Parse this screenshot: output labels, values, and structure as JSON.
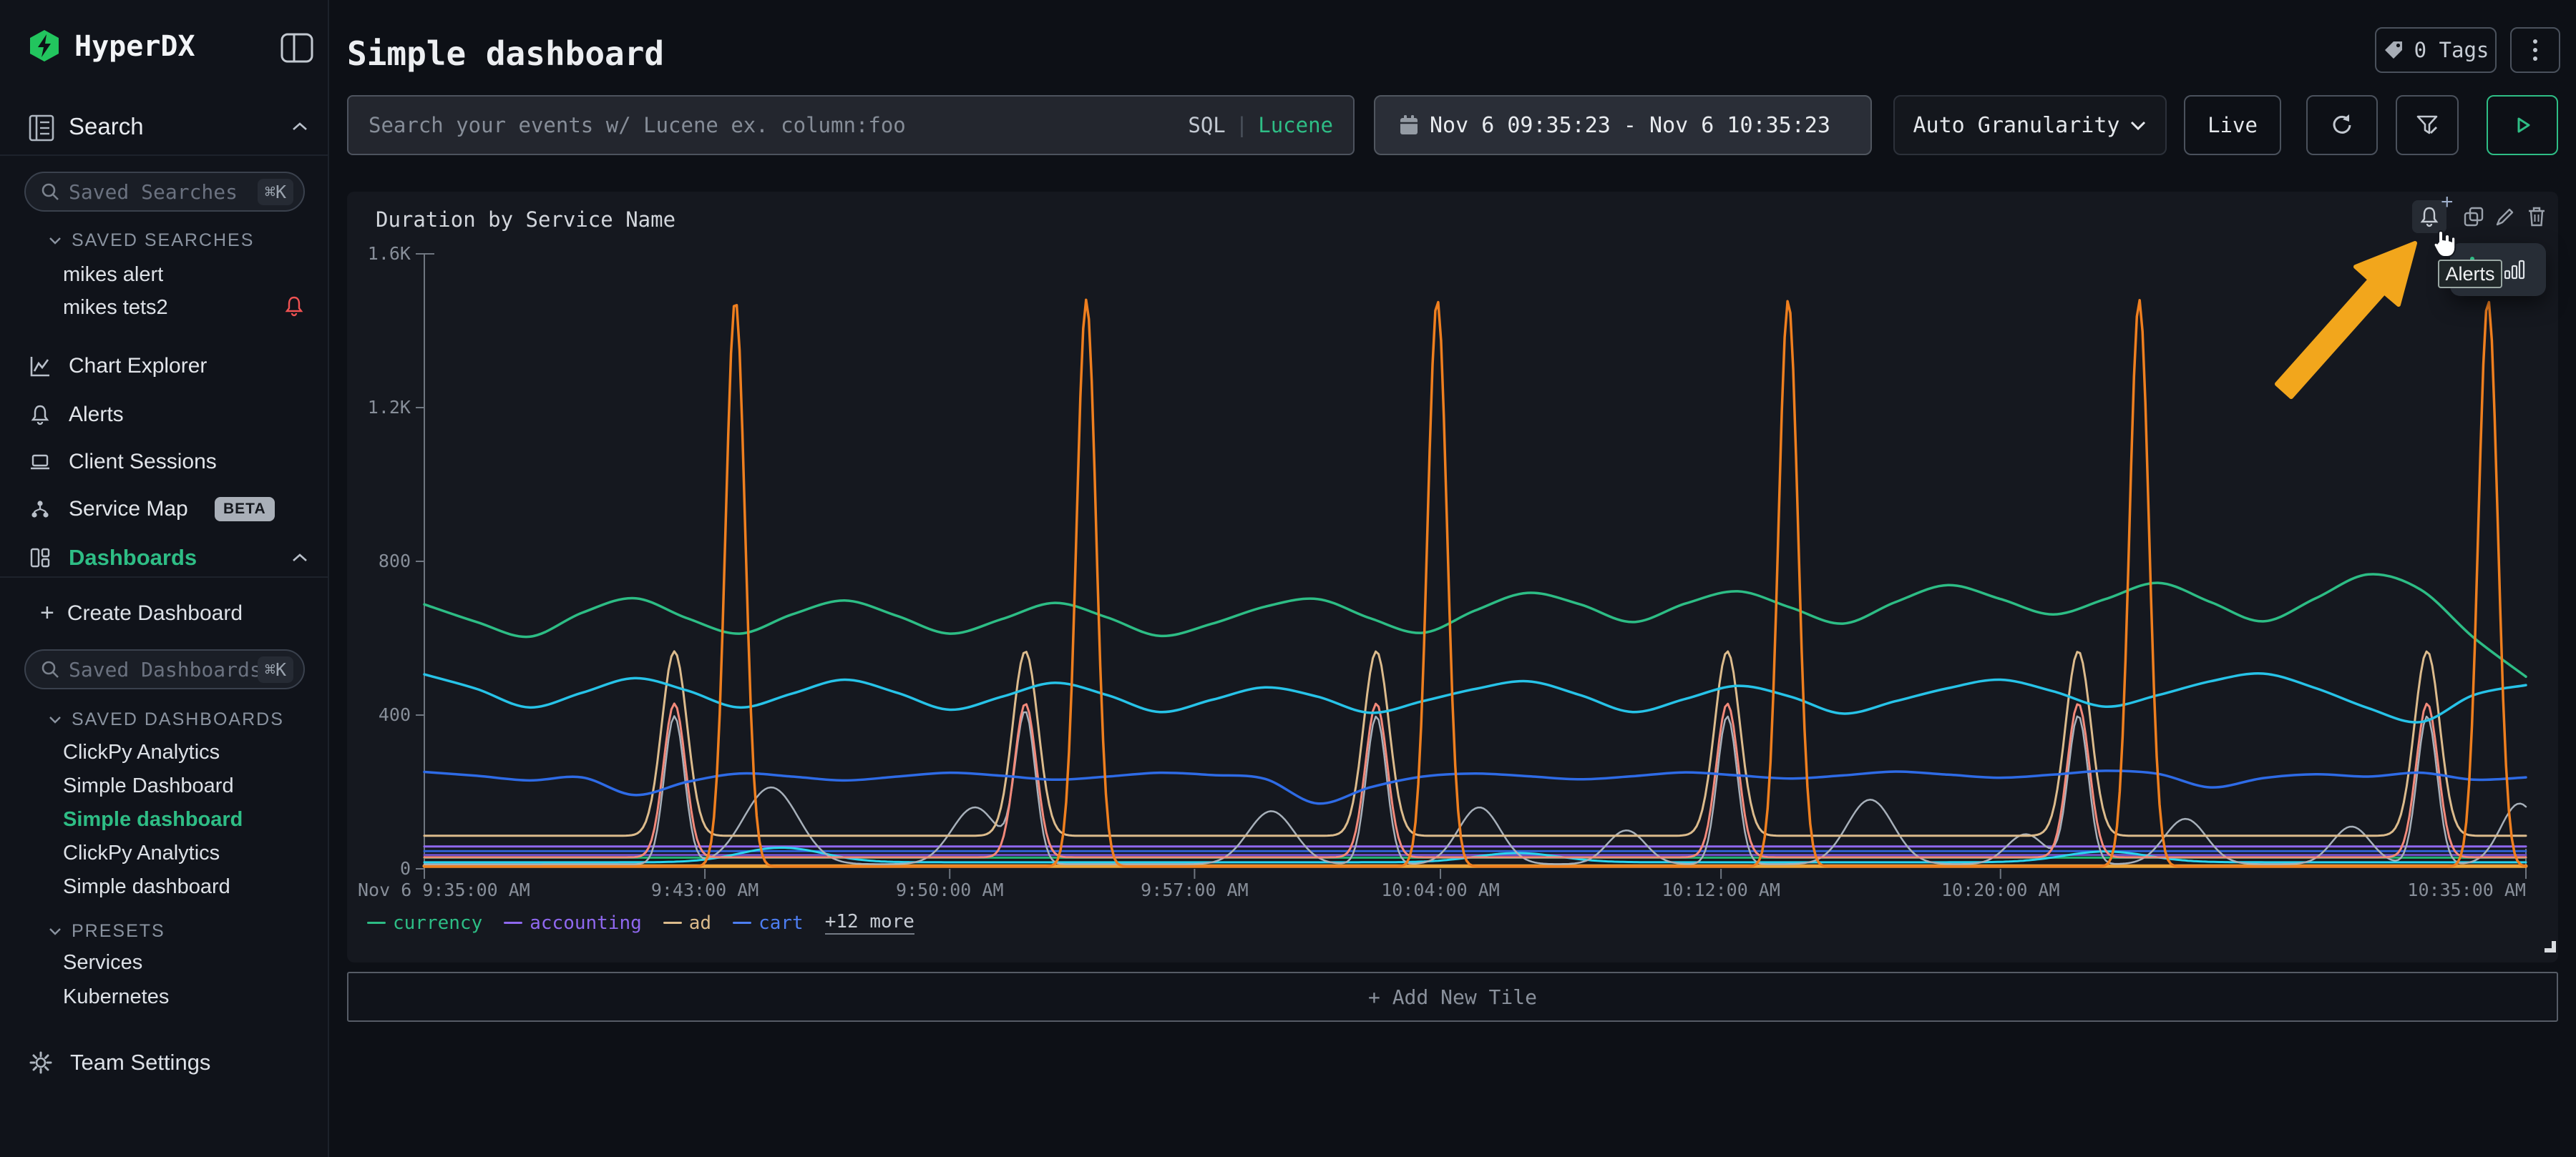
{
  "app": {
    "name": "HyperDX"
  },
  "colors": {
    "accent_green": "#2ebd85",
    "alert_red": "#f05252",
    "annotation_arrow": "#f2a61c",
    "page_bg": "#0d1016",
    "tile_bg": "#15181f"
  },
  "icons": {
    "logo": "lightning-hexagon",
    "collapse": "panel-collapse",
    "search_section": "log-search",
    "saved_search_input": "magnifier",
    "nav": [
      "line-chart",
      "bell",
      "laptop",
      "hierarchy",
      "layout-columns"
    ],
    "team_settings": "gear",
    "tags": "tag",
    "date": "calendar",
    "refresh": "circular-arrow",
    "filter": "funnel-edit",
    "run": "play-triangle",
    "tile_actions": [
      "bell-plus",
      "duplicate",
      "pencil",
      "trash"
    ],
    "tooltip_chart": "bar-chart",
    "cursor": "hand-pointer"
  },
  "sidebar": {
    "search_section": {
      "label": "Search"
    },
    "saved_searches": {
      "placeholder": "Saved Searches",
      "shortcut": "⌘K",
      "header": "SAVED SEARCHES",
      "items": [
        "mikes alert",
        "mikes tets2"
      ],
      "alert_on_index": 1
    },
    "nav": [
      {
        "label": "Chart Explorer"
      },
      {
        "label": "Alerts"
      },
      {
        "label": "Client Sessions"
      },
      {
        "label": "Service Map",
        "badge": "BETA"
      },
      {
        "label": "Dashboards"
      }
    ],
    "create_dashboard_label": "Create Dashboard",
    "saved_dashboards": {
      "placeholder": "Saved Dashboards",
      "shortcut": "⌘K",
      "header": "SAVED DASHBOARDS",
      "items": [
        "ClickPy Analytics",
        "Simple Dashboard",
        "Simple dashboard",
        "ClickPy Analytics",
        "Simple dashboard"
      ],
      "active_index": 2
    },
    "presets": {
      "header": "PRESETS",
      "items": [
        "Services",
        "Kubernetes"
      ]
    },
    "team_settings_label": "Team Settings"
  },
  "header": {
    "title": "Simple dashboard",
    "tags_button": "0 Tags"
  },
  "toolbar": {
    "search_placeholder": "Search your events w/ Lucene ex. column:foo",
    "sql_label": "SQL",
    "divider": "|",
    "lucene_label": "Lucene",
    "time_range": "Nov 6 09:35:23 - Nov 6 10:35:23",
    "granularity": "Auto Granularity",
    "live_label": "Live"
  },
  "tile": {
    "title": "Duration by Service Name",
    "tooltip_label": "Alerts",
    "add_new_tile_label": "+ Add New Tile"
  },
  "chart_data": {
    "type": "line",
    "title": "Duration by Service Name",
    "ylim": [
      0,
      1600
    ],
    "grid": false,
    "legend_position": "bottom-left",
    "x_mode": "even-fraction-of-time-range",
    "time_range": [
      "Nov 6 9:35:00 AM",
      "Nov 6 10:35:00 AM"
    ],
    "y_ticks": [
      {
        "v": 0,
        "label": "0"
      },
      {
        "v": 400,
        "label": "400"
      },
      {
        "v": 800,
        "label": "800"
      },
      {
        "v": 1200,
        "label": "1.2K"
      },
      {
        "v": 1600,
        "label": "1.6K"
      }
    ],
    "x_ticks": [
      {
        "f": 0.0,
        "label": "Nov 6 9:35:00 AM",
        "align": "left"
      },
      {
        "f": 0.1335,
        "label": "9:43:00 AM",
        "align": "center"
      },
      {
        "f": 0.25,
        "label": "9:50:00 AM",
        "align": "center"
      },
      {
        "f": 0.3665,
        "label": "9:57:00 AM",
        "align": "center"
      },
      {
        "f": 0.4835,
        "label": "10:04:00 AM",
        "align": "center"
      },
      {
        "f": 0.617,
        "label": "10:12:00 AM",
        "align": "center"
      },
      {
        "f": 0.75,
        "label": "10:20:00 AM",
        "align": "center"
      },
      {
        "f": 1.0,
        "label": "10:35:00 AM",
        "align": "right"
      }
    ],
    "legend": [
      {
        "label": "currency",
        "color": "#2dbd85"
      },
      {
        "label": "accounting",
        "color": "#8f68ef"
      },
      {
        "label": "ad",
        "color": "#dcbb8c"
      },
      {
        "label": "cart",
        "color": "#4d7ef2"
      },
      {
        "label": "+12 more",
        "color": ""
      }
    ],
    "series": [
      {
        "name": "accounting",
        "color": "#8f68ef",
        "width": 3,
        "base": 58
      },
      {
        "name": "",
        "key": "flat-blue",
        "color": "#3163d8",
        "width": 3,
        "base": 46
      },
      {
        "name": "",
        "key": "flat-violet",
        "color": "#6d4fc4",
        "width": 3,
        "base": 36
      },
      {
        "name": "",
        "key": "flat-teal",
        "color": "#21b573",
        "width": 3,
        "base": 29
      },
      {
        "name": "",
        "key": "flat-cyan",
        "color": "#2bd5ee",
        "width": 3,
        "base": 17,
        "humps": [
          [
            0.17,
            38,
            0.02
          ],
          [
            0.52,
            24,
            0.02
          ],
          [
            0.8,
            28,
            0.02
          ]
        ]
      },
      {
        "name": "",
        "key": "baseline-amber",
        "color": "#eda33a",
        "width": 5,
        "base": 7
      },
      {
        "name": "",
        "key": "grey-spiky",
        "color": "#a7b0ba",
        "width": 2.5,
        "base": 12,
        "spikes": {
          "at": [
            0.119,
            0.286,
            0.453,
            0.62,
            0.787,
            0.953
          ],
          "peak": 385,
          "hw": 0.0048
        },
        "humps": [
          [
            0.165,
            200,
            0.013
          ],
          [
            0.262,
            148,
            0.011
          ],
          [
            0.403,
            138,
            0.011
          ],
          [
            0.502,
            148,
            0.01
          ],
          [
            0.572,
            88,
            0.009
          ],
          [
            0.688,
            168,
            0.011
          ],
          [
            0.762,
            78,
            0.009
          ],
          [
            0.838,
            118,
            0.01
          ],
          [
            0.917,
            98,
            0.009
          ],
          [
            0.997,
            158,
            0.009
          ]
        ]
      },
      {
        "name": "",
        "key": "salmon-spiky",
        "color": "#f2897a",
        "width": 3,
        "base": 30,
        "spikes": {
          "at": [
            0.119,
            0.286,
            0.453,
            0.62,
            0.787,
            0.953
          ],
          "peak": 400,
          "hw": 0.0052
        }
      },
      {
        "name": "ad",
        "color": "#dcbb8c",
        "width": 3,
        "base": 86,
        "spikes": {
          "at": [
            0.119,
            0.286,
            0.453,
            0.62,
            0.787,
            0.953
          ],
          "peak": 480,
          "hw": 0.006
        }
      },
      {
        "name": "cart",
        "color": "#2e6be6",
        "width": 3.5,
        "values": [
          252,
          242,
          230,
          238,
          192,
          226,
          248,
          240,
          230,
          240,
          250,
          242,
          232,
          240,
          250,
          244,
          234,
          170,
          212,
          240,
          248,
          241,
          233,
          241,
          251,
          243,
          235,
          243,
          253,
          245,
          237,
          245,
          255,
          247,
          212,
          236,
          246,
          240,
          250,
          232,
          238
        ]
      },
      {
        "name": "",
        "key": "cyan-wavy",
        "color": "#27c3e8",
        "width": 3.5,
        "values": [
          506,
          468,
          420,
          458,
          496,
          464,
          420,
          456,
          492,
          458,
          414,
          448,
          484,
          452,
          408,
          440,
          472,
          448,
          406,
          436,
          468,
          488,
          452,
          408,
          442,
          476,
          448,
          404,
          436,
          470,
          492,
          462,
          422,
          452,
          488,
          508,
          470,
          418,
          382,
          452,
          478
        ]
      },
      {
        "name": "currency",
        "color": "#2dbd85",
        "width": 3.5,
        "values": [
          688,
          642,
          604,
          666,
          704,
          652,
          612,
          662,
          698,
          658,
          612,
          650,
          692,
          654,
          606,
          638,
          682,
          702,
          652,
          614,
          672,
          718,
          688,
          642,
          690,
          722,
          680,
          638,
          694,
          738,
          702,
          662,
          702,
          744,
          694,
          644,
          704,
          766,
          726,
          602,
          500
        ]
      },
      {
        "name": "",
        "key": "orange-spiky",
        "color": "#ef7f1f",
        "width": 3.5,
        "base": 6,
        "spikes": {
          "at": [
            0.148,
            0.315,
            0.482,
            0.649,
            0.816,
            0.982
          ],
          "peak": 1475,
          "hw": 0.0046
        }
      }
    ]
  }
}
